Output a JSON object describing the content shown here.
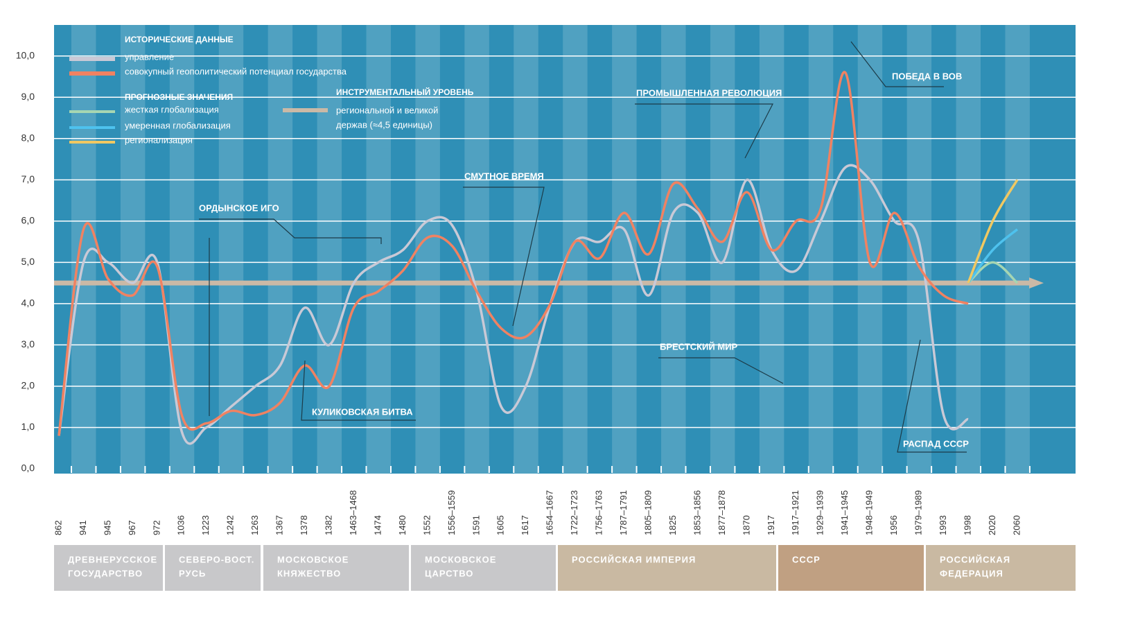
{
  "chart_data": {
    "type": "line",
    "categories": [
      "862",
      "941",
      "945",
      "967",
      "972",
      "1036",
      "1223",
      "1242",
      "1263",
      "1367",
      "1378",
      "1382",
      "1463–1468",
      "1474",
      "1480",
      "1552",
      "1556–1559",
      "1591",
      "1605",
      "1617",
      "1654–1667",
      "1722–1723",
      "1756–1763",
      "1787–1791",
      "1805–1809",
      "1825",
      "1853–1856",
      "1877–1878",
      "1870",
      "1917",
      "1917–1921",
      "1929–1939",
      "1941–1945",
      "1948–1949",
      "1956",
      "1979–1989",
      "1993",
      "1998",
      "2020",
      "2060"
    ],
    "ylim": [
      0,
      10.5
    ],
    "yticks": [
      {
        "value": 0,
        "label": "0,0"
      },
      {
        "value": 1,
        "label": "1,0"
      },
      {
        "value": 2,
        "label": "2,0"
      },
      {
        "value": 3,
        "label": "3,0"
      },
      {
        "value": 4,
        "label": "4,0"
      },
      {
        "value": 5,
        "label": "5,0"
      },
      {
        "value": 6,
        "label": "6,0"
      },
      {
        "value": 7,
        "label": "7,0"
      },
      {
        "value": 8,
        "label": "8,0"
      },
      {
        "value": 9,
        "label": "9,0"
      },
      {
        "value": 10,
        "label": "10,0"
      }
    ],
    "grid": true,
    "legend_groups": [
      "ИСТОРИЧЕСКИЕ ДАННЫЕ",
      "ПРОГНОЗНЫЕ ЗНАЧЕНИЯ",
      "ИНСТРУМЕНТАЛЬНЫЙ УРОВЕНЬ"
    ],
    "series": [
      {
        "name": "управление",
        "color": "#c9c9d6",
        "values": [
          0.8,
          5.0,
          5.0,
          4.5,
          5.0,
          0.9,
          1.0,
          1.5,
          2.0,
          2.5,
          3.9,
          3.0,
          4.5,
          5.0,
          5.3,
          6.0,
          5.9,
          4.3,
          1.5,
          2.0,
          4.0,
          5.5,
          5.5,
          5.8,
          4.2,
          6.2,
          6.2,
          5.0,
          7.0,
          5.3,
          4.8,
          6.0,
          7.3,
          7.0,
          6.0,
          5.5,
          1.3,
          1.2,
          null,
          null
        ]
      },
      {
        "name": "совокупный геополитический потенциал государства",
        "color": "#f08262",
        "values": [
          0.8,
          5.8,
          4.6,
          4.2,
          4.9,
          1.3,
          1.1,
          1.4,
          1.3,
          1.6,
          2.5,
          2.0,
          3.9,
          4.3,
          4.8,
          5.6,
          5.4,
          4.3,
          3.4,
          3.2,
          4.0,
          5.5,
          5.1,
          6.2,
          5.2,
          6.9,
          6.3,
          5.5,
          6.7,
          5.3,
          6.0,
          6.3,
          9.6,
          5.0,
          6.2,
          4.9,
          4.2,
          4.0,
          null,
          null
        ]
      },
      {
        "name": "жесткая глобализация",
        "color": "#a6d6b2",
        "values": [
          null,
          null,
          null,
          null,
          null,
          null,
          null,
          null,
          null,
          null,
          null,
          null,
          null,
          null,
          null,
          null,
          null,
          null,
          null,
          null,
          null,
          null,
          null,
          null,
          null,
          null,
          null,
          null,
          null,
          null,
          null,
          null,
          null,
          null,
          null,
          null,
          null,
          4.5,
          5.0,
          4.5
        ]
      },
      {
        "name": "умеренная глобализация",
        "color": "#4ec2ee",
        "values": [
          null,
          null,
          null,
          null,
          null,
          null,
          null,
          null,
          null,
          null,
          null,
          null,
          null,
          null,
          null,
          null,
          null,
          null,
          null,
          null,
          null,
          null,
          null,
          null,
          null,
          null,
          null,
          null,
          null,
          null,
          null,
          null,
          null,
          null,
          null,
          null,
          null,
          4.5,
          5.3,
          5.8
        ]
      },
      {
        "name": "регионализация",
        "color": "#f0c862",
        "values": [
          null,
          null,
          null,
          null,
          null,
          null,
          null,
          null,
          null,
          null,
          null,
          null,
          null,
          null,
          null,
          null,
          null,
          null,
          null,
          null,
          null,
          null,
          null,
          null,
          null,
          null,
          null,
          null,
          null,
          null,
          null,
          null,
          null,
          null,
          null,
          null,
          null,
          4.5,
          6.0,
          7.0
        ]
      }
    ],
    "level": {
      "name_lines": [
        "региональной и великой",
        "держав (≈4,5 единицы)"
      ],
      "color": "#cbb9a6",
      "value": 4.5
    },
    "annotations": [
      "ОРДЫНСКОЕ ИГО",
      "СМУТНОЕ ВРЕМЯ",
      "ПРОМЫШЛЕННАЯ РЕВОЛЮЦИЯ",
      "ПОБЕДА В ВОВ",
      "БРЕСТСКИЙ МИР",
      "КУЛИКОВСКАЯ БИТВА",
      "РАСПАД СССР"
    ],
    "periods": [
      {
        "lines": [
          "ДРЕВНЕРУССКОЕ",
          "ГОСУДАРСТВО"
        ],
        "color": "#c8c8ca"
      },
      {
        "lines": [
          "СЕВЕРО-ВОСТ.",
          "РУСЬ"
        ],
        "color": "#c8c8ca"
      },
      {
        "lines": [
          "МОСКОВСКОЕ",
          "КНЯЖЕСТВО"
        ],
        "color": "#c8c8ca"
      },
      {
        "lines": [
          "МОСКОВСКОЕ",
          "ЦАРСТВО"
        ],
        "color": "#c8c8ca"
      },
      {
        "lines": [
          "РОССИЙСКАЯ ИМПЕРИЯ"
        ],
        "color": "#c9b9a2"
      },
      {
        "lines": [
          "СССР"
        ],
        "color": "#c0a082"
      },
      {
        "lines": [
          "РОССИЙСКАЯ",
          "ФЕДЕРАЦИЯ"
        ],
        "color": "#c9b9a2"
      }
    ]
  }
}
